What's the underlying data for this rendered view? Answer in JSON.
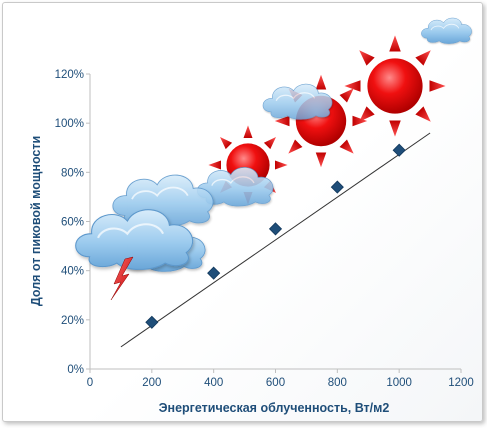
{
  "chart_data": {
    "type": "scatter",
    "x": [
      200,
      400,
      600,
      800,
      1000
    ],
    "y": [
      0.19,
      0.39,
      0.57,
      0.74,
      0.89
    ],
    "trendline": {
      "x": [
        100,
        1100
      ],
      "y": [
        0.09,
        0.96
      ]
    },
    "xlabel": "Энергетическая облученность, Вт/м2",
    "ylabel": "Доля от пиковой мощности",
    "xlim": [
      0,
      1200
    ],
    "ylim": [
      0,
      1.2
    ],
    "xticks": [
      0,
      200,
      400,
      600,
      800,
      1000,
      1200
    ],
    "xtick_labels": [
      "0",
      "200",
      "400",
      "600",
      "800",
      "1000",
      "1200"
    ],
    "yticks": [
      0,
      0.2,
      0.4,
      0.6,
      0.8,
      1.0,
      1.2
    ],
    "ytick_labels": [
      "0%",
      "20%",
      "40%",
      "60%",
      "80%",
      "100%",
      "120%"
    ],
    "grid": false,
    "legend": "none",
    "colors": {
      "marker": "#1f4e79",
      "axis_text": "#1f4e79",
      "trendline": "#333333",
      "sun": "#e60000",
      "cloud": "#8fc3ea"
    },
    "decorations": [
      "cloud-icon",
      "sun-icon",
      "lightning-icon"
    ]
  }
}
